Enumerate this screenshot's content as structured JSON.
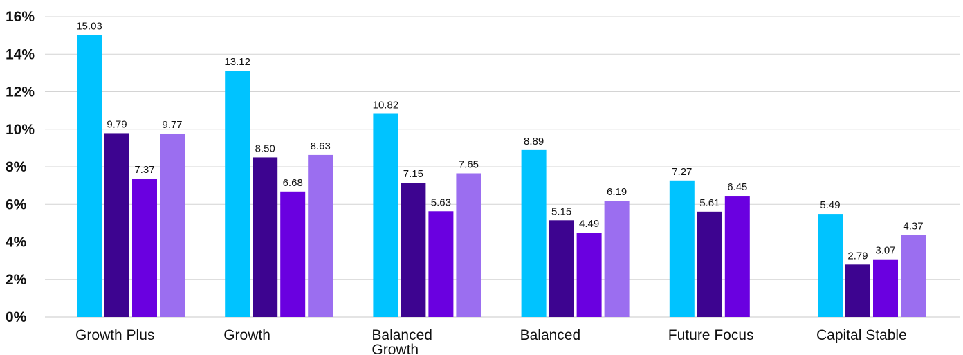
{
  "chart_data": {
    "type": "bar",
    "categories": [
      "Growth Plus",
      "Growth",
      "Balanced Growth",
      "Balanced",
      "Future Focus",
      "Capital Stable"
    ],
    "category_label_lines": [
      [
        "Growth Plus"
      ],
      [
        "Growth"
      ],
      [
        "Balanced",
        "Growth"
      ],
      [
        "Balanced"
      ],
      [
        "Future Focus"
      ],
      [
        "Capital Stable"
      ]
    ],
    "series": [
      {
        "values": [
          15.03,
          13.12,
          10.82,
          8.89,
          7.27,
          5.49
        ],
        "labels": [
          "15.03",
          "13.12",
          "10.82",
          "8.89",
          "7.27",
          "5.49"
        ],
        "color": "#00c3ff"
      },
      {
        "values": [
          9.79,
          8.5,
          7.15,
          5.15,
          5.61,
          2.79
        ],
        "labels": [
          "9.79",
          "8.50",
          "7.15",
          "5.15",
          "5.61",
          "2.79"
        ],
        "color": "#3d0490"
      },
      {
        "values": [
          7.37,
          6.68,
          5.63,
          4.49,
          6.45,
          3.07
        ],
        "labels": [
          "7.37",
          "6.68",
          "5.63",
          "4.49",
          "6.45",
          "3.07"
        ],
        "color": "#6a00e0"
      },
      {
        "values": [
          9.77,
          8.63,
          7.65,
          6.19,
          null,
          4.37
        ],
        "labels": [
          "9.77",
          "8.63",
          "7.65",
          "6.19",
          null,
          "4.37"
        ],
        "color": "#9b6ef0"
      }
    ],
    "yticks": [
      "0%",
      "2%",
      "4%",
      "6%",
      "8%",
      "10%",
      "12%",
      "14%",
      "16%"
    ],
    "ylim": [
      0,
      16
    ],
    "grid": true,
    "title": "",
    "xlabel": "",
    "ylabel": ""
  }
}
